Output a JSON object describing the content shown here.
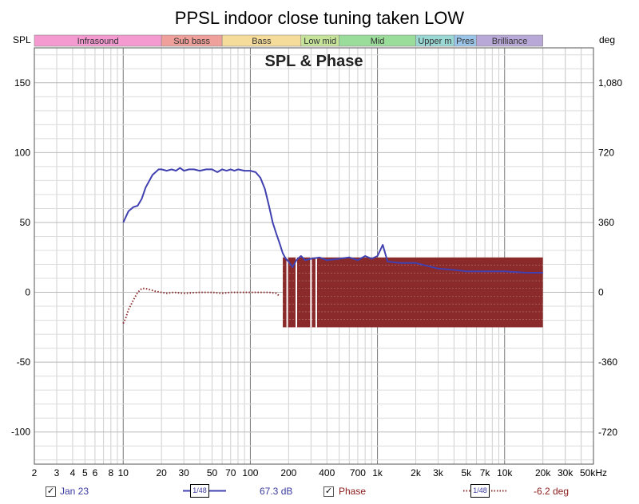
{
  "chart_data": {
    "type": "line",
    "title": "PPSL indoor close tuning taken LOW",
    "subtitle": "SPL & Phase",
    "y_left_label": "SPL",
    "y_right_label": "deg",
    "x_unit": "Hz",
    "x_scale": "log",
    "xlim": [
      2,
      50000
    ],
    "ylim_left": [
      -123,
      175
    ],
    "ylim_right": [
      -885,
      1260
    ],
    "grid": true,
    "x_ticks": [
      {
        "v": 2,
        "label": "2"
      },
      {
        "v": 3,
        "label": "3"
      },
      {
        "v": 4,
        "label": "4"
      },
      {
        "v": 5,
        "label": "5"
      },
      {
        "v": 6,
        "label": "6"
      },
      {
        "v": 8,
        "label": "8"
      },
      {
        "v": 10,
        "label": "10"
      },
      {
        "v": 20,
        "label": "20"
      },
      {
        "v": 30,
        "label": "30"
      },
      {
        "v": 50,
        "label": "50"
      },
      {
        "v": 70,
        "label": "70"
      },
      {
        "v": 100,
        "label": "100"
      },
      {
        "v": 200,
        "label": "200"
      },
      {
        "v": 400,
        "label": "400"
      },
      {
        "v": 700,
        "label": "700"
      },
      {
        "v": 1000,
        "label": "1k"
      },
      {
        "v": 2000,
        "label": "2k"
      },
      {
        "v": 3000,
        "label": "3k"
      },
      {
        "v": 5000,
        "label": "5k"
      },
      {
        "v": 7000,
        "label": "7k"
      },
      {
        "v": 10000,
        "label": "10k"
      },
      {
        "v": 20000,
        "label": "20k"
      },
      {
        "v": 30000,
        "label": "30k"
      },
      {
        "v": 50000,
        "label": "50kHz"
      }
    ],
    "y_left_ticks": [
      {
        "v": 150,
        "label": "150"
      },
      {
        "v": 100,
        "label": "100"
      },
      {
        "v": 50,
        "label": "50"
      },
      {
        "v": 0,
        "label": "0"
      },
      {
        "v": -50,
        "label": "-50"
      },
      {
        "v": -100,
        "label": "-100"
      }
    ],
    "y_right_ticks": [
      {
        "v": 1080,
        "label": "1,080"
      },
      {
        "v": 720,
        "label": "720"
      },
      {
        "v": 360,
        "label": "360"
      },
      {
        "v": 0,
        "label": "0"
      },
      {
        "v": -360,
        "label": "-360"
      },
      {
        "v": -720,
        "label": "-720"
      }
    ],
    "bands": [
      {
        "label": "Infrasound",
        "from": 2,
        "to": 20,
        "color": "#f49ad0"
      },
      {
        "label": "Sub bass",
        "from": 20,
        "to": 60,
        "color": "#f0a09a"
      },
      {
        "label": "Bass",
        "from": 60,
        "to": 250,
        "color": "#f5dc9a"
      },
      {
        "label": "Low mid",
        "from": 250,
        "to": 500,
        "color": "#c6e39a"
      },
      {
        "label": "Mid",
        "from": 500,
        "to": 2000,
        "color": "#9adc9a"
      },
      {
        "label": "Upper m",
        "from": 2000,
        "to": 4000,
        "color": "#9ad8d4"
      },
      {
        "label": "Pres",
        "from": 4000,
        "to": 6000,
        "color": "#9ac4e8"
      },
      {
        "label": "Brilliance",
        "from": 6000,
        "to": 20000,
        "color": "#b8a8d8"
      }
    ],
    "series": [
      {
        "name": "Jan 23",
        "axis": "left",
        "color": "#4040b0",
        "x": [
          10,
          11,
          12,
          13,
          14,
          15,
          17,
          19,
          20,
          22,
          24,
          26,
          28,
          30,
          33,
          36,
          40,
          45,
          50,
          55,
          60,
          65,
          70,
          75,
          80,
          90,
          100,
          110,
          120,
          130,
          140,
          150,
          160,
          170,
          180,
          190,
          200,
          215,
          230,
          250,
          270,
          300,
          350,
          400,
          500,
          600,
          700,
          800,
          900,
          1000,
          1100,
          1200,
          1500,
          2000,
          3000,
          4000,
          5000,
          7000,
          10000,
          15000,
          20000
        ],
        "y": [
          50,
          58,
          61,
          62,
          67,
          75,
          84,
          88,
          88,
          87,
          88,
          87,
          89,
          87,
          88,
          88,
          87,
          88,
          88,
          86,
          88,
          87,
          88,
          87,
          88,
          87,
          87,
          86,
          82,
          74,
          62,
          50,
          42,
          35,
          28,
          24,
          22,
          18,
          23,
          26,
          23,
          24,
          25,
          23,
          24,
          25,
          23,
          26,
          24,
          26,
          34,
          22,
          21,
          21,
          17,
          16,
          15,
          15,
          15,
          14,
          14
        ]
      },
      {
        "name": "Phase",
        "axis": "right",
        "color": "#8b2a2a",
        "dotted": true,
        "x": [
          10,
          10.5,
          11,
          12,
          13,
          14,
          15,
          16,
          17,
          18,
          20,
          22,
          25,
          30,
          40,
          50,
          60,
          70,
          80,
          100,
          120,
          140,
          160,
          170
        ],
        "y": [
          -160,
          -130,
          -90,
          -40,
          0,
          20,
          20,
          15,
          10,
          5,
          0,
          -5,
          0,
          -5,
          0,
          0,
          -5,
          0,
          0,
          0,
          0,
          0,
          -5,
          -20
        ],
        "wrap_region": {
          "from": 180,
          "to": 20000,
          "min": -180,
          "max": 180
        }
      }
    ]
  },
  "footer": {
    "item1_label": "Jan 23",
    "item1_check": "✓",
    "item1_smoothing": "1/48",
    "item1_value": "67.3 dB",
    "item2_label": "Phase",
    "item2_check": "✓",
    "item2_smoothing": "1/48",
    "item2_value": "-6.2 deg"
  }
}
